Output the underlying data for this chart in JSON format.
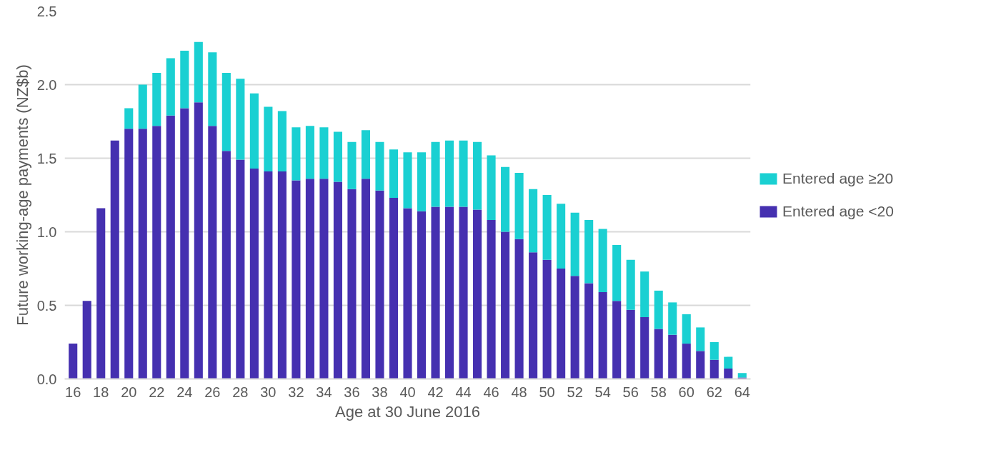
{
  "chart_data": {
    "type": "bar",
    "stacked": true,
    "xlabel": "Age at 30 June 2016",
    "ylabel": "Future working-age payments (NZ$b)",
    "x": [
      16,
      17,
      18,
      19,
      20,
      21,
      22,
      23,
      24,
      25,
      26,
      27,
      28,
      29,
      30,
      31,
      32,
      33,
      34,
      35,
      36,
      37,
      38,
      39,
      40,
      41,
      42,
      43,
      44,
      45,
      46,
      47,
      48,
      49,
      50,
      51,
      52,
      53,
      54,
      55,
      56,
      57,
      58,
      59,
      60,
      61,
      62,
      63,
      64
    ],
    "series": [
      {
        "name": "Entered age <20",
        "color": "#4530b0",
        "values": [
          0.24,
          0.53,
          1.16,
          1.62,
          1.7,
          1.7,
          1.72,
          1.79,
          1.84,
          1.88,
          1.72,
          1.55,
          1.49,
          1.43,
          1.41,
          1.41,
          1.35,
          1.36,
          1.36,
          1.34,
          1.29,
          1.36,
          1.28,
          1.23,
          1.16,
          1.14,
          1.17,
          1.17,
          1.17,
          1.15,
          1.08,
          1.0,
          0.95,
          0.86,
          0.81,
          0.75,
          0.7,
          0.65,
          0.59,
          0.53,
          0.47,
          0.42,
          0.34,
          0.3,
          0.24,
          0.19,
          0.13,
          0.07,
          0.01
        ]
      },
      {
        "name": "Entered age ≥20",
        "color": "#1ad0d2",
        "values": [
          null,
          null,
          null,
          null,
          0.14,
          0.3,
          0.36,
          0.39,
          0.39,
          0.41,
          0.5,
          0.53,
          0.55,
          0.51,
          0.44,
          0.41,
          0.36,
          0.36,
          0.35,
          0.34,
          0.32,
          0.33,
          0.33,
          0.33,
          0.38,
          0.4,
          0.44,
          0.45,
          0.45,
          0.46,
          0.44,
          0.44,
          0.45,
          0.43,
          0.44,
          0.44,
          0.43,
          0.43,
          0.43,
          0.38,
          0.34,
          0.31,
          0.26,
          0.22,
          0.2,
          0.16,
          0.12,
          0.08,
          0.03
        ]
      }
    ],
    "xlim": [
      15.4,
      64.6
    ],
    "xticks": [
      16,
      18,
      20,
      22,
      24,
      26,
      28,
      30,
      32,
      34,
      36,
      38,
      40,
      42,
      44,
      46,
      48,
      50,
      52,
      54,
      56,
      58,
      60,
      62,
      64
    ],
    "ylim": [
      0,
      2.5
    ],
    "yticks": [
      {
        "value": 0,
        "label": "0.0"
      },
      {
        "value": 0.5,
        "label": "0.5"
      },
      {
        "value": 1,
        "label": "1.0"
      },
      {
        "value": 1.5,
        "label": "1.5"
      },
      {
        "value": 2,
        "label": "2.0"
      },
      {
        "value": 2.5,
        "label": "2.5"
      }
    ],
    "grid": "y",
    "legend": "right"
  }
}
